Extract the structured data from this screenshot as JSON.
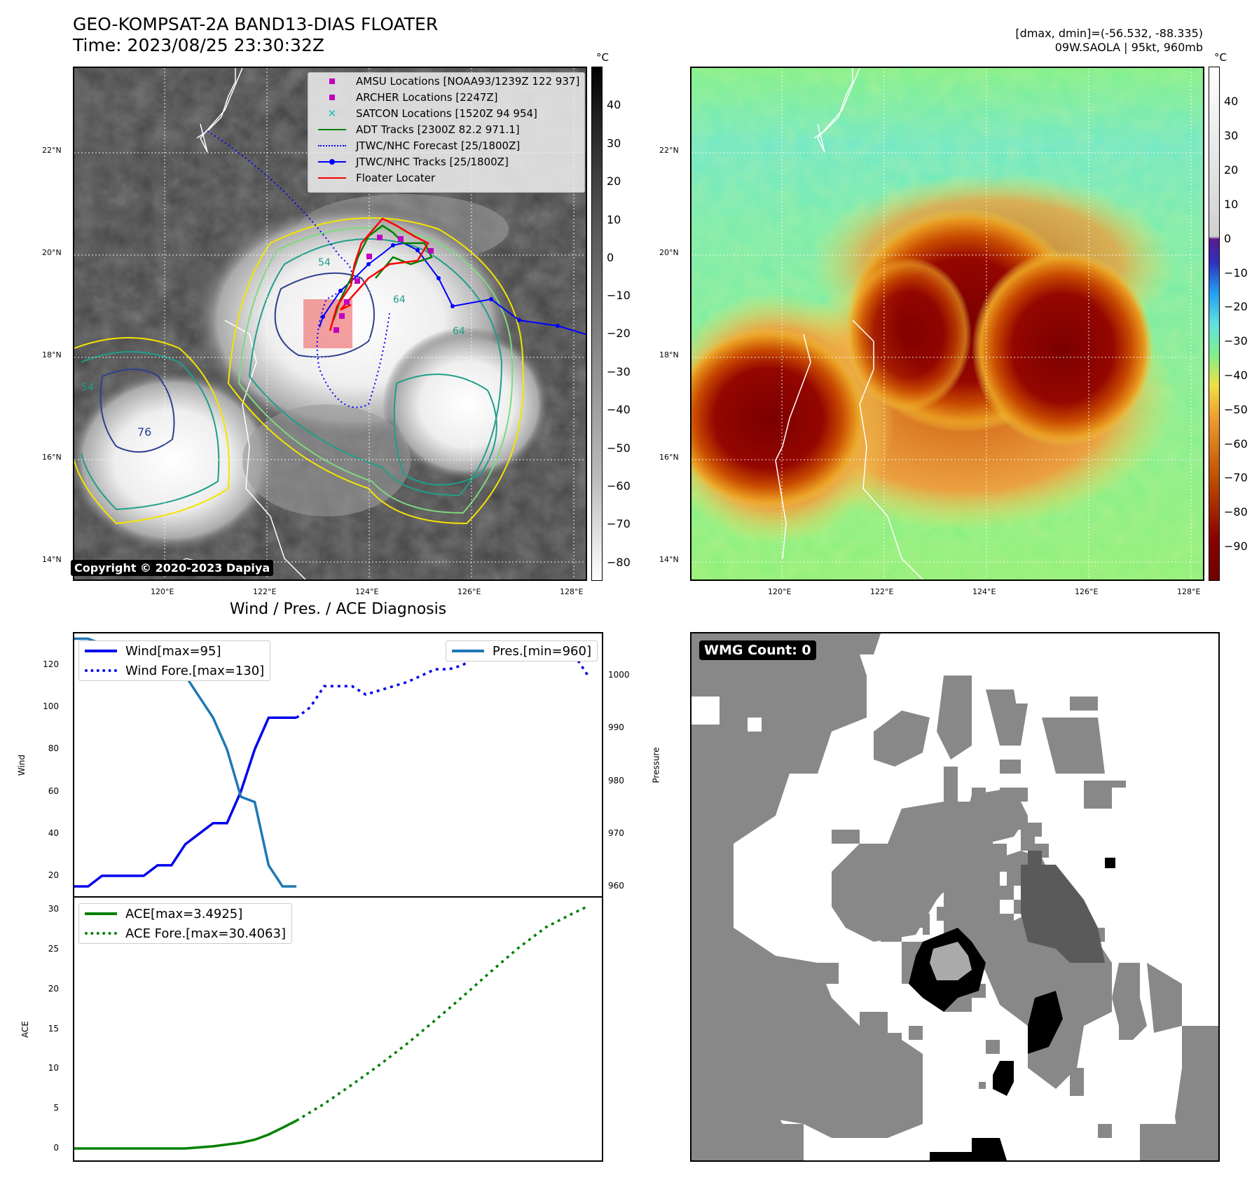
{
  "header": {
    "title_line1": "GEO-KOMPSAT-2A BAND13-DIAS FLOATER",
    "title_line2": "Time: 2023/08/25 23:30:32Z",
    "right_line1": "[dmax, dmin]=(-56.532, -88.335)",
    "right_line2": "09W.SAOLA | 95kt, 960mb"
  },
  "map_left": {
    "lat_ticks": [
      "22°N",
      "20°N",
      "18°N",
      "16°N",
      "14°N"
    ],
    "lon_ticks": [
      "120°E",
      "122°E",
      "124°E",
      "126°E",
      "128°E"
    ],
    "legend": [
      {
        "label": "AMSU Locations [NOAA93/1239Z 122 937]",
        "symbol": "square",
        "color": "#c000c0"
      },
      {
        "label": "ARCHER Locations [2247Z]",
        "symbol": "square",
        "color": "#c000c0"
      },
      {
        "label": "SATCON Locations [1520Z 94 954]",
        "symbol": "x",
        "color": "#20c0c0"
      },
      {
        "label": "ADT Tracks [2300Z 82.2 971.1]",
        "symbol": "line",
        "color": "#008000"
      },
      {
        "label": "JTWC/NHC Forecast [25/1800Z]",
        "symbol": "dotted",
        "color": "#0000ff"
      },
      {
        "label": "JTWC/NHC Tracks [25/1800Z]",
        "symbol": "line-dot",
        "color": "#0000ff"
      },
      {
        "label": "Floater Locater",
        "symbol": "line",
        "color": "#ff0000"
      }
    ],
    "contour_labels": [
      "54",
      "64",
      "64",
      "76",
      "54"
    ],
    "copyright": "Copyright © 2020-2023 Dapiya",
    "colorbar_unit": "°C",
    "colorbar_ticks": [
      "40",
      "30",
      "20",
      "10",
      "0",
      "−10",
      "−20",
      "−30",
      "−40",
      "−50",
      "−60",
      "−70",
      "−80"
    ]
  },
  "map_right": {
    "lat_ticks": [
      "22°N",
      "20°N",
      "18°N",
      "16°N",
      "14°N"
    ],
    "lon_ticks": [
      "120°E",
      "122°E",
      "124°E",
      "126°E",
      "128°E"
    ],
    "colorbar_unit": "°C",
    "colorbar_ticks": [
      "40",
      "30",
      "20",
      "10",
      "0",
      "−10",
      "−20",
      "−30",
      "−40",
      "−50",
      "−60",
      "−70",
      "−80",
      "−90"
    ]
  },
  "diagnosis_title": "Wind / Pres. / ACE Diagnosis",
  "chart_data": [
    {
      "type": "line",
      "panel": "wind-pressure",
      "ylabel": "Wind",
      "ylabel_right": "Pressure",
      "ylim": [
        10,
        135
      ],
      "ylim_right": [
        958,
        1008
      ],
      "yticks": [
        20,
        40,
        60,
        80,
        100,
        120
      ],
      "yticks_right": [
        960,
        970,
        980,
        990,
        1000
      ],
      "xlim": [
        0,
        38
      ],
      "series": [
        {
          "name": "Wind[max=95]",
          "style": "solid",
          "color": "#0000ee",
          "x": [
            0,
            1,
            2,
            3,
            4,
            5,
            6,
            7,
            8,
            9,
            10,
            11,
            12,
            13,
            14,
            15,
            16
          ],
          "values": [
            15,
            15,
            20,
            20,
            20,
            20,
            25,
            25,
            35,
            40,
            45,
            45,
            60,
            80,
            95,
            95,
            95
          ]
        },
        {
          "name": "Wind Fore.[max=130]",
          "style": "dotted",
          "color": "#0000ee",
          "x": [
            16,
            17,
            18,
            19,
            20,
            21,
            22,
            23,
            24,
            25,
            26,
            27,
            28,
            29,
            30,
            31,
            32,
            33,
            34,
            35,
            36,
            37
          ],
          "values": [
            95,
            100,
            110,
            110,
            110,
            106,
            108,
            110,
            112,
            115,
            118,
            118,
            120,
            125,
            128,
            130,
            128,
            125,
            124,
            124,
            125,
            115
          ]
        },
        {
          "name": "Pres.[min=960]",
          "style": "solid",
          "color": "#1f77b4",
          "axis": "right",
          "x": [
            0,
            1,
            2,
            3,
            4,
            5,
            6,
            7,
            8,
            9,
            10,
            11,
            12,
            13,
            14,
            15,
            16
          ],
          "values": [
            1007,
            1007,
            1006,
            1005,
            1005,
            1005,
            1002,
            1002,
            1000,
            996,
            992,
            986,
            977,
            976,
            964,
            960,
            960
          ]
        }
      ]
    },
    {
      "type": "line",
      "panel": "ace",
      "ylabel": "ACE",
      "ylim": [
        -1.5,
        31.5
      ],
      "yticks": [
        0,
        5,
        10,
        15,
        20,
        25,
        30
      ],
      "xlim": [
        0,
        38
      ],
      "series": [
        {
          "name": "ACE[max=3.4925]",
          "style": "solid",
          "color": "#008000",
          "x": [
            0,
            2,
            4,
            6,
            8,
            10,
            12,
            13,
            14,
            15,
            16
          ],
          "values": [
            0.0,
            0.0,
            0.0,
            0.0,
            0.0,
            0.27,
            0.72,
            1.1,
            1.75,
            2.6,
            3.4925
          ]
        },
        {
          "name": "ACE Fore.[max=30.4063]",
          "style": "dotted",
          "color": "#008000",
          "x": [
            16,
            18,
            20,
            22,
            24,
            26,
            28,
            30,
            32,
            34,
            36,
            37
          ],
          "values": [
            3.4925,
            5.6,
            8.0,
            10.5,
            13.2,
            16.1,
            19.1,
            22.2,
            25.2,
            27.8,
            29.6,
            30.4063
          ]
        }
      ]
    }
  ],
  "wmg": {
    "badge": "WMG Count: 0"
  }
}
